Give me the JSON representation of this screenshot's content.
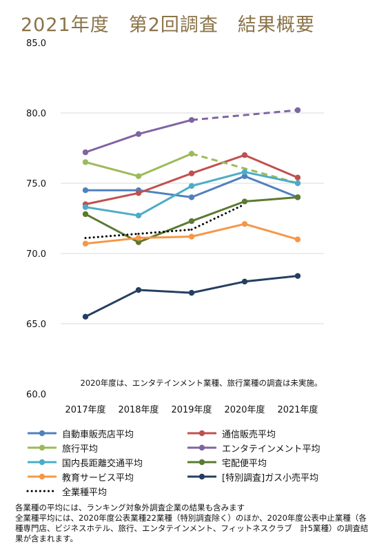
{
  "page": {
    "title": "2021年度　第2回調査　結果概要",
    "footnote_lines": [
      "各業種の平均には、ランキング対象外調査企業の結果も含みます",
      "全業種平均には、2020年度公表業種22業種（特別調査除く）のほか、2020年度公表中止業種（各種専門店、ビジネスホテル、旅行、エンタテインメント、フィットネスクラブ　計5業種）の調査結果が含まれます。"
    ]
  },
  "chart_data": {
    "type": "line",
    "title": "2021年度　第2回調査　結果概要",
    "xlabel": "",
    "ylabel": "",
    "categories": [
      "2017年度",
      "2018年度",
      "2019年度",
      "2020年度",
      "2021年度"
    ],
    "ylim": [
      60,
      85
    ],
    "yticks": [
      "60.0",
      "65.0",
      "70.0",
      "75.0",
      "80.0",
      "85.0"
    ],
    "grid": "horizontal",
    "legend_position": "bottom",
    "annotation": "2020年度は、エンタテインメント業種、旅行業種の調査は未実施。",
    "series": [
      {
        "name": "自動車販売店平均",
        "color": "#4f81bd",
        "values": [
          74.5,
          74.5,
          74.0,
          75.5,
          74.0
        ]
      },
      {
        "name": "通信販売平均",
        "color": "#c0504d",
        "values": [
          73.5,
          74.3,
          75.7,
          77.0,
          75.4
        ]
      },
      {
        "name": "旅行平均",
        "color": "#9bbb59",
        "values": [
          76.5,
          75.5,
          77.1,
          null,
          75.0
        ],
        "gap_dashed": true
      },
      {
        "name": "エンタテインメント平均",
        "color": "#8064a2",
        "values": [
          77.2,
          78.5,
          79.5,
          null,
          80.2
        ],
        "gap_dashed": true
      },
      {
        "name": "国内長距離交通平均",
        "color": "#4bacc6",
        "values": [
          73.3,
          72.7,
          74.8,
          75.8,
          75.0
        ]
      },
      {
        "name": "宅配便平均",
        "color": "#5b7a32",
        "values": [
          72.8,
          70.8,
          72.3,
          73.7,
          74.0
        ]
      },
      {
        "name": "教育サービス平均",
        "color": "#f79646",
        "values": [
          70.7,
          71.1,
          71.2,
          72.1,
          71.0
        ]
      },
      {
        "name": "[特別調査]ガス小売平均",
        "color": "#243f60",
        "values": [
          65.5,
          67.4,
          67.2,
          68.0,
          68.4
        ]
      },
      {
        "name": "全業種平均",
        "color": "#000000",
        "values": [
          71.1,
          71.4,
          71.7,
          73.5,
          null
        ],
        "dotted": true
      }
    ]
  }
}
